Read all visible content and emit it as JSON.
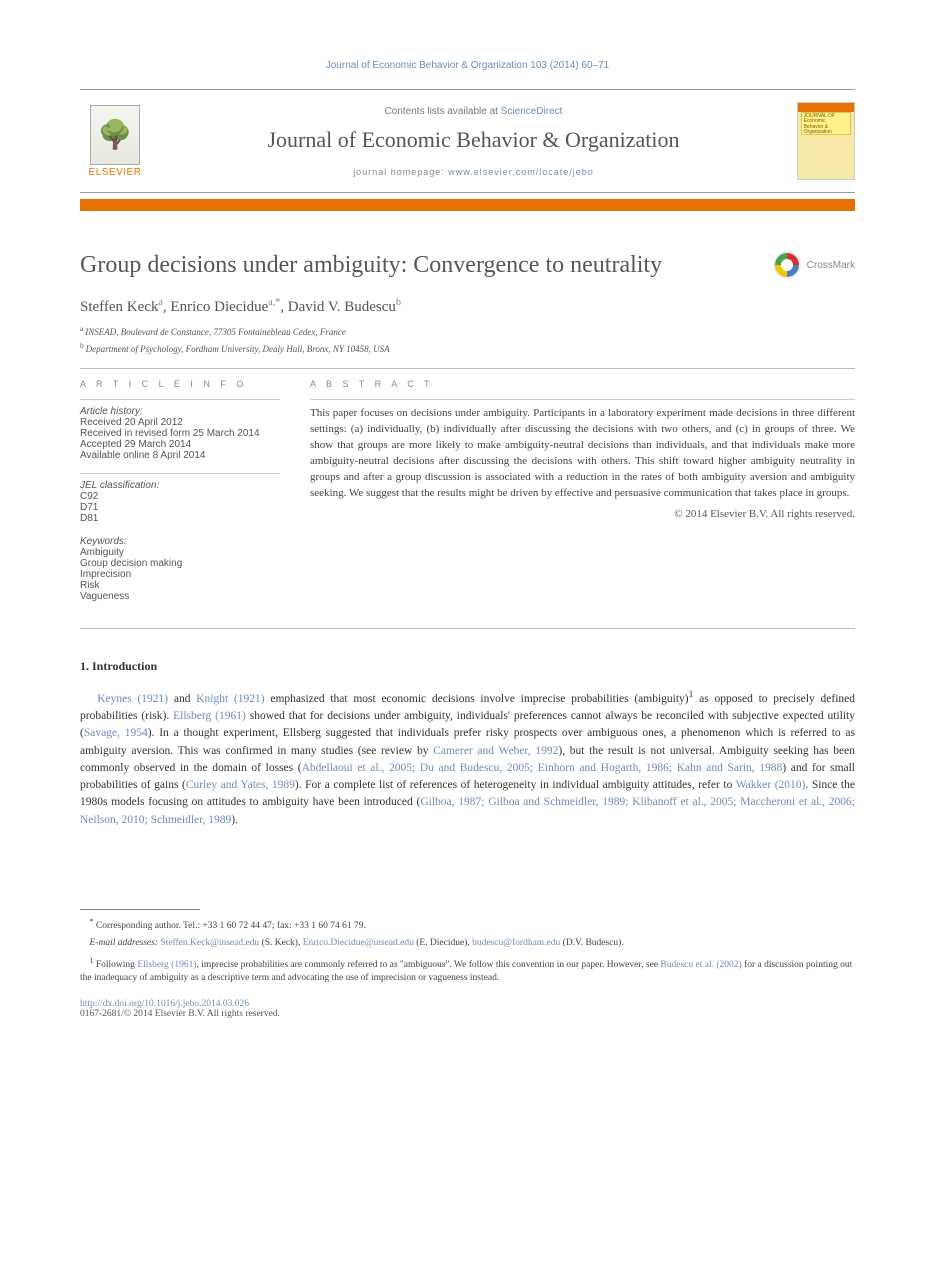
{
  "citation": "Journal of Economic Behavior & Organization 103 (2014) 60–71",
  "header": {
    "contents_prefix": "Contents lists available at ",
    "sciencedirect": "ScienceDirect",
    "journal_name": "Journal of Economic Behavior & Organization",
    "homepage_label": "journal homepage: ",
    "homepage_url": "www.elsevier.com/locate/jebo",
    "publisher_label": "ELSEVIER"
  },
  "title": "Group decisions under ambiguity: Convergence to neutrality",
  "crossmark_label": "CrossMark",
  "authors": [
    {
      "name": "Steffen Keck",
      "sup": "a"
    },
    {
      "name": "Enrico Diecidue",
      "sup": "a,*"
    },
    {
      "name": "David V. Budescu",
      "sup": "b"
    }
  ],
  "affiliations": [
    {
      "sup": "a",
      "text": "INSEAD, Boulevard de Constance, 77305 Fontainebleau Cedex, France"
    },
    {
      "sup": "b",
      "text": "Department of Psychology, Fordham University, Dealy Hall, Bronx, NY 10458, USA"
    }
  ],
  "article_info": {
    "heading": "A R T I C L E   I N F O",
    "history_label": "Article history:",
    "history": [
      "Received 20 April 2012",
      "Received in revised form 25 March 2014",
      "Accepted 29 March 2014",
      "Available online 8 April 2014"
    ],
    "jel_label": "JEL classification:",
    "jel": [
      "C92",
      "D71",
      "D81"
    ],
    "keywords_label": "Keywords:",
    "keywords": [
      "Ambiguity",
      "Group decision making",
      "Imprecision",
      "Risk",
      "Vagueness"
    ]
  },
  "abstract": {
    "heading": "A B S T R A C T",
    "text": "This paper focuses on decisions under ambiguity. Participants in a laboratory experiment made decisions in three different settings: (a) individually, (b) individually after discussing the decisions with two others, and (c) in groups of three. We show that groups are more likely to make ambiguity-neutral decisions than individuals, and that individuals make more ambiguity-neutral decisions after discussing the decisions with others. This shift toward higher ambiguity neutrality in groups and after a group discussion is associated with a reduction in the rates of both ambiguity aversion and ambiguity seeking. We suggest that the results might be driven by effective and persuasive communication that takes place in groups.",
    "copyright": "© 2014 Elsevier B.V. All rights reserved."
  },
  "section1": {
    "heading": "1.  Introduction",
    "paragraph_parts": [
      {
        "t": "link",
        "v": "Keynes (1921)"
      },
      {
        "t": "text",
        "v": " and "
      },
      {
        "t": "link",
        "v": "Knight (1921)"
      },
      {
        "t": "text",
        "v": " emphasized that most economic decisions involve imprecise probabilities (ambiguity)"
      },
      {
        "t": "sup",
        "v": "1"
      },
      {
        "t": "text",
        "v": " as opposed to precisely defined probabilities (risk). "
      },
      {
        "t": "link",
        "v": "Ellsberg (1961)"
      },
      {
        "t": "text",
        "v": " showed that for decisions under ambiguity, individuals' preferences cannot always be reconciled with subjective expected utility ("
      },
      {
        "t": "link",
        "v": "Savage, 1954"
      },
      {
        "t": "text",
        "v": "). In a thought experiment, Ellsberg suggested that individuals prefer risky prospects over ambiguous ones, a phenomenon which is referred to as ambiguity aversion. This was confirmed in many studies (see review by "
      },
      {
        "t": "link",
        "v": "Camerer and Weber, 1992"
      },
      {
        "t": "text",
        "v": "), but the result is not universal. Ambiguity seeking has been commonly observed in the domain of losses ("
      },
      {
        "t": "link",
        "v": "Abdellaoui et al., 2005; Du and Budescu, 2005; Einhorn and Hogarth, 1986; Kahn and Sarin, 1988"
      },
      {
        "t": "text",
        "v": ") and for small probabilities of gains ("
      },
      {
        "t": "link",
        "v": "Curley and Yates, 1989"
      },
      {
        "t": "text",
        "v": "). For a complete list of references of heterogeneity in individual ambiguity attitudes, refer to "
      },
      {
        "t": "link",
        "v": "Wakker (2010)"
      },
      {
        "t": "text",
        "v": ". Since the 1980s models focusing on attitudes to ambiguity have been introduced ("
      },
      {
        "t": "link",
        "v": "Gilboa, 1987; Gilboa and Schmeidler, 1989; Klibanoff et al., 2005; Maccheroni et al., 2006; Neilson, 2010; Schmeidler, 1989"
      },
      {
        "t": "text",
        "v": ")."
      }
    ]
  },
  "footnotes": {
    "corr": {
      "marker": "*",
      "text": "Corresponding author. Tel.: +33 1 60 72 44 47; fax: +33 1 60 74 61 79."
    },
    "emails_label": "E-mail addresses: ",
    "emails": [
      {
        "addr": "Steffen.Keck@insead.edu",
        "who": " (S. Keck), "
      },
      {
        "addr": "Enrico.Diecidue@insead.edu",
        "who": " (E. Diecidue), "
      },
      {
        "addr": "budescu@fordham.edu",
        "who": " (D.V. Budescu)."
      }
    ],
    "fn1_parts": [
      {
        "t": "sup",
        "v": "1"
      },
      {
        "t": "text",
        "v": " Following "
      },
      {
        "t": "link",
        "v": "Ellsberg (1961)"
      },
      {
        "t": "text",
        "v": ", imprecise probabilities are commonly referred to as \"ambiguous\". We follow this convention in our paper. However, see "
      },
      {
        "t": "link",
        "v": "Budescu et al. (2002)"
      },
      {
        "t": "text",
        "v": " for a discussion pointing out the inadequacy of ambiguity as a descriptive term and advocating the use of imprecision or vagueness instead."
      }
    ]
  },
  "doi": {
    "url": "http://dx.doi.org/10.1016/j.jebo.2014.03.026",
    "line2": "0167-2681/© 2014 Elsevier B.V. All rights reserved."
  },
  "colors": {
    "link": "#6a8db8",
    "orange": "#e57200",
    "text": "#333333",
    "muted": "#777777"
  }
}
